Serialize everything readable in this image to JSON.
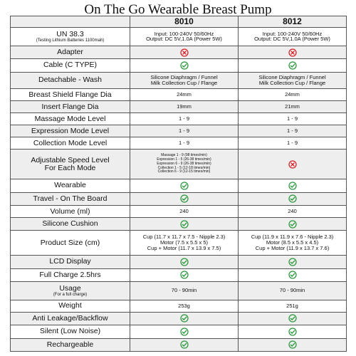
{
  "title": "On The Go Wearable Breast Pump",
  "columns": [
    "8010",
    "8012"
  ],
  "rows": [
    {
      "label": "UN 38.3",
      "sublabel": "(Testing Lithium Batteries 1100mah)",
      "v1": [
        "Input: 100-240V 50/60Hz",
        "Output: DC 5V,1.0A (Power 5W)"
      ],
      "v2": [
        "Input: 100-240V 50/60Hz",
        "Output: DC 5V,1.0A (Power 5W)"
      ]
    },
    {
      "label": "Adapter",
      "v1icon": "no",
      "v2icon": "no"
    },
    {
      "label": "Cable (C TYPE)",
      "v1icon": "ok",
      "v2icon": "ok"
    },
    {
      "label": "Detachable - Wash",
      "v1": [
        "Silicone Diaphragm / Funnel",
        "Milk Collection Cup / Flange"
      ],
      "v2": [
        "Silicone Diaphragm / Funnel",
        "Milk Collection Cup / Flange"
      ]
    },
    {
      "label": "Breast Shield Flange Dia",
      "v1": [
        "24mm"
      ],
      "v2": [
        "24mm"
      ]
    },
    {
      "label": "Insert Flange Dia",
      "v1": [
        "19mm"
      ],
      "v2": [
        "21mm"
      ]
    },
    {
      "label": "Massage Mode Level",
      "v1": [
        "1 - 9"
      ],
      "v2": [
        "1 - 9"
      ]
    },
    {
      "label": "Expression Mode Level",
      "v1": [
        "1 - 9"
      ],
      "v2": [
        "1 - 9"
      ]
    },
    {
      "label": "Collection Mode Level",
      "v1": [
        "1 - 9"
      ],
      "v2": [
        "1 - 9"
      ]
    },
    {
      "label": "Adjustable Speed Level",
      "label2": "For Each Mode",
      "v1tiny": [
        "Massage 1 - 9 (98 times/min)",
        "Expression 1 - 5 (26-38 times/min)",
        "Expression 6 - 9 (26-38 times/min)",
        "Collection 1 - 5 (12-18 times/min)",
        "Collection 6 - 9 (12-15 times/min)"
      ],
      "v2icon": "no"
    },
    {
      "label": "Wearable",
      "v1icon": "ok",
      "v2icon": "ok"
    },
    {
      "label": "Travel - On The Board",
      "v1icon": "ok",
      "v2icon": "ok"
    },
    {
      "label": "Volume (ml)",
      "v1": [
        "240"
      ],
      "v2": [
        "240"
      ]
    },
    {
      "label": "Silicone Cushion",
      "v1icon": "ok",
      "v2icon": "ok"
    },
    {
      "label": "Product Size (cm)",
      "v1": [
        "Cup (11.7 x 11.7 x 7.5 - Nipple 2.3)",
        "Motor (7.5 x 5.5 x 5)",
        "Cup + Motor (11.7 x 13.9 x 7.5)"
      ],
      "v2": [
        "Cup (11.9 x 11.9 x 7.6 - Nipple 2.3)",
        "Motor (8.5 x 5.5 x 4.5)",
        "Cup + Motor (11.9 x 13.7 x 7.6)"
      ]
    },
    {
      "label": "LCD Display",
      "v1icon": "ok",
      "v2icon": "ok"
    },
    {
      "label": "Full Charge 2.5hrs",
      "v1icon": "ok",
      "v2icon": "ok"
    },
    {
      "label": "Usage",
      "sublabel": "(For a full charge)",
      "v1": [
        "70 - 90min"
      ],
      "v2": [
        "70 - 90min"
      ]
    },
    {
      "label": "Weight",
      "v1": [
        "253g"
      ],
      "v2": [
        "251g"
      ]
    },
    {
      "label": "Anti Leakage/Backflow",
      "v1icon": "ok",
      "v2icon": "ok"
    },
    {
      "label": "Silent (Low Noise)",
      "v1icon": "ok",
      "v2icon": "ok"
    },
    {
      "label": "Rechargeable",
      "v1icon": "ok",
      "v2icon": "ok"
    }
  ],
  "icons": {
    "ok": "check-circle-icon",
    "no": "x-circle-icon"
  },
  "colors": {
    "ok": "#2e9a3e",
    "no": "#d8232a",
    "shade": "#eeeeee",
    "border": "#555555"
  }
}
